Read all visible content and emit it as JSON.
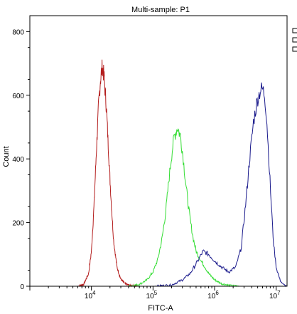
{
  "chart_data": {
    "type": "line",
    "title": "Multi-sample: P1",
    "xlabel": "FITC-A",
    "ylabel": "Count",
    "x_scale": "log",
    "xlim": [
      1000,
      15000000
    ],
    "ylim": [
      0,
      850
    ],
    "y_ticks": [
      0,
      200,
      400,
      600,
      800
    ],
    "x_ticks": [
      {
        "base": "10",
        "exp": "4",
        "value": 10000
      },
      {
        "base": "10",
        "exp": "5",
        "value": 100000
      },
      {
        "base": "10",
        "exp": "6",
        "value": 1000000
      },
      {
        "base": "10",
        "exp": "7",
        "value": 10000000
      }
    ],
    "grid": false,
    "series": [
      {
        "color": "#b41e1e",
        "peak_x": 15000,
        "peak_y": 690,
        "points": [
          [
            6000,
            0
          ],
          [
            7500,
            6
          ],
          [
            9000,
            40
          ],
          [
            10000,
            110
          ],
          [
            11000,
            250
          ],
          [
            12000,
            420
          ],
          [
            13000,
            560
          ],
          [
            14000,
            650
          ],
          [
            15000,
            690
          ],
          [
            16000,
            660
          ],
          [
            17500,
            560
          ],
          [
            19000,
            420
          ],
          [
            21000,
            260
          ],
          [
            23000,
            140
          ],
          [
            26000,
            60
          ],
          [
            30000,
            22
          ],
          [
            35000,
            8
          ],
          [
            42000,
            2
          ],
          [
            55000,
            0
          ]
        ]
      },
      {
        "color": "#33dd33",
        "peak_x": 260000,
        "peak_y": 500,
        "points": [
          [
            40000,
            0
          ],
          [
            60000,
            6
          ],
          [
            80000,
            20
          ],
          [
            100000,
            45
          ],
          [
            120000,
            85
          ],
          [
            140000,
            150
          ],
          [
            160000,
            230
          ],
          [
            180000,
            330
          ],
          [
            200000,
            410
          ],
          [
            220000,
            470
          ],
          [
            250000,
            500
          ],
          [
            280000,
            470
          ],
          [
            310000,
            400
          ],
          [
            350000,
            300
          ],
          [
            400000,
            210
          ],
          [
            450000,
            150
          ],
          [
            500000,
            110
          ],
          [
            600000,
            80
          ],
          [
            700000,
            60
          ],
          [
            800000,
            40
          ],
          [
            1000000,
            20
          ],
          [
            1300000,
            8
          ],
          [
            1800000,
            2
          ],
          [
            2500000,
            0
          ]
        ]
      },
      {
        "color": "#1a1a8c",
        "peak_x": 6000000,
        "peak_y": 620,
        "points": [
          [
            100000,
            0
          ],
          [
            200000,
            4
          ],
          [
            300000,
            20
          ],
          [
            400000,
            40
          ],
          [
            500000,
            70
          ],
          [
            650000,
            110
          ],
          [
            800000,
            100
          ],
          [
            1000000,
            80
          ],
          [
            1300000,
            60
          ],
          [
            1700000,
            45
          ],
          [
            2200000,
            60
          ],
          [
            2700000,
            120
          ],
          [
            3200000,
            260
          ],
          [
            3700000,
            400
          ],
          [
            4300000,
            520
          ],
          [
            5000000,
            590
          ],
          [
            5500000,
            615
          ],
          [
            6000000,
            620
          ],
          [
            6500000,
            600
          ],
          [
            7000000,
            530
          ],
          [
            7500000,
            420
          ],
          [
            8200000,
            280
          ],
          [
            9000000,
            140
          ],
          [
            10000000,
            60
          ],
          [
            11500000,
            20
          ],
          [
            13000000,
            5
          ],
          [
            15000000,
            0
          ]
        ]
      }
    ]
  }
}
